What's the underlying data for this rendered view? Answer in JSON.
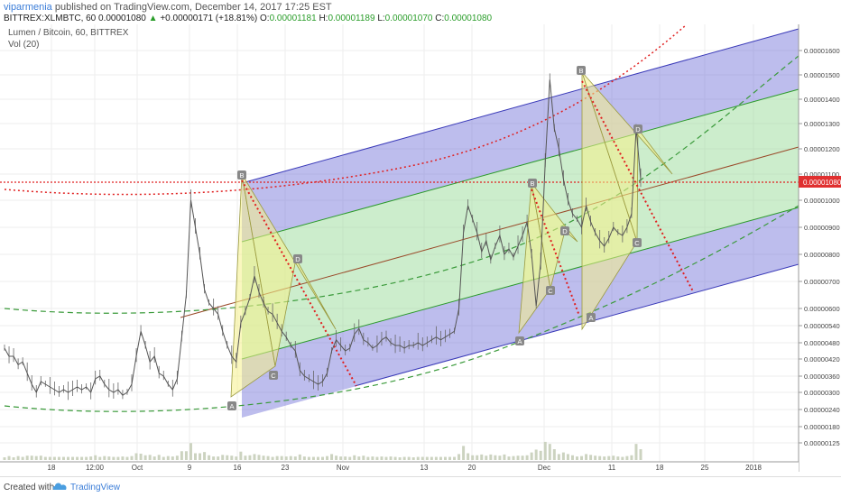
{
  "header": {
    "user": "viparmenia",
    "published": "published on TradingView.com, December 14, 2017 17:25 EST",
    "symbol": "BITTREX:XLMBTC, 60",
    "open_label": "O:",
    "open": "0.00001181",
    "high_label": "H:",
    "high": "0.00001189",
    "low_label": "L:",
    "low": "0.00001070",
    "close_label": "C:",
    "close": "0.00001080",
    "last": "0.00001080",
    "change": "+0.00000171 (+18.81%)",
    "change_arrow": "▲"
  },
  "legend": {
    "title": "Lumen / Bitcoin, 60, BITTREX",
    "volume": "Vol (20)"
  },
  "footer": {
    "created_with": "Created with",
    "brand": "TradingView"
  },
  "colors": {
    "candle": "#666666",
    "blue_fill": "#6c6cd8",
    "green_fill": "#8ed68e",
    "yellow_fill": "#f5f08a",
    "pitch_line": "#3a3ab8",
    "median_line": "#9a4a2a",
    "red_dotted": "#e02020",
    "green_dashed": "#3a9a3a",
    "price_tag_bg": "#e03030",
    "volume": "#ccd3c0"
  },
  "chart_data": {
    "type": "line",
    "title": "Lumen / Bitcoin, 60, BITTREX",
    "xlabel": "",
    "ylabel": "",
    "x_tick_labels": [
      "18",
      "12:00",
      "Oct",
      "9",
      "16",
      "23",
      "Nov",
      "13",
      "20",
      "Dec",
      "11",
      "18",
      "25",
      "2018"
    ],
    "y_tick_labels": [
      "0.00001600",
      "0.00001500",
      "0.00001400",
      "0.00001300",
      "0.00001200",
      "0.00001100",
      "0.00001000",
      "0.00000900",
      "0.00000800",
      "0.00000700",
      "0.00000600",
      "0.00000540",
      "0.00000480",
      "0.00000420",
      "0.00000360",
      "0.00000300",
      "0.00000240",
      "0.00000180",
      "0.00000125"
    ],
    "current_price_label": "0.00001080",
    "grid": true,
    "pattern_labels": [
      "B",
      "D",
      "C",
      "A",
      "B",
      "D",
      "C",
      "A",
      "B",
      "D",
      "C",
      "A"
    ],
    "series": [
      {
        "values": [
          4.6e-06,
          4.3e-06,
          4.3e-06,
          4e-06,
          4.1e-06,
          3.7e-06,
          3.3e-06,
          3e-06,
          3.4e-06,
          3.3e-06,
          3.2e-06,
          3.1e-06,
          3e-06,
          3.1e-06,
          3e-06,
          3.1e-06,
          3.2e-06,
          3.1e-06,
          3.2e-06,
          3e-06,
          3.5e-06,
          3.6e-06,
          3.3e-06,
          3.1e-06,
          3e-06,
          3.1e-06,
          2.9e-06,
          3e-06,
          3.3e-06,
          4.3e-06,
          5.2e-06,
          4.7e-06,
          4.1e-06,
          4.3e-06,
          3.7e-06,
          3.6e-06,
          3.3e-06,
          3.1e-06,
          3.5e-06,
          5e-06,
          6.5e-06,
          1e-05,
          9e-06,
          8e-06,
          6.7e-06,
          6.2e-06,
          6e-06,
          5.8e-06,
          5.2e-06,
          4.7e-06,
          4.3e-06,
          4.1e-06,
          5.5e-06,
          5.9e-06,
          6.4e-06,
          7.2e-06,
          6.6e-06,
          6.2e-06,
          5.9e-06,
          5.8e-06,
          5.5e-06,
          5.2e-06,
          5e-06,
          4.7e-06,
          4.5e-06,
          3.8e-06,
          3.6e-06,
          3.5e-06,
          3.4e-06,
          3.3e-06,
          3.4e-06,
          3.7e-06,
          4.5e-06,
          4.9e-06,
          4.7e-06,
          4.5e-06,
          4.6e-06,
          5.1e-06,
          5.3e-06,
          4.9e-06,
          4.8e-06,
          4.6e-06,
          4.7e-06,
          4.9e-06,
          5e-06,
          4.8e-06,
          4.7e-06,
          4.7e-06,
          4.6e-06,
          4.7e-06,
          4.7e-06,
          4.8e-06,
          4.7e-06,
          4.8e-06,
          4.9e-06,
          5e-06,
          4.9e-06,
          5e-06,
          5.1e-06,
          5.2e-06,
          6e-06,
          8.8e-06,
          9.8e-06,
          9.3e-06,
          8.8e-06,
          8.1e-06,
          8.5e-06,
          7.8e-06,
          8.3e-06,
          8.7e-06,
          8e-06,
          8.2e-06,
          7.9e-06,
          8.3e-06,
          8.7e-06,
          9.2e-06,
          8e-06,
          6.1e-06,
          7.7e-06,
          1.15e-05,
          1.48e-05,
          1.28e-05,
          1.2e-05,
          1.08e-05,
          1e-05,
          9.5e-06,
          9.3e-06,
          9e-06,
          9.8e-06,
          9.2e-06,
          8.8e-06,
          8.5e-06,
          8.3e-06,
          8.6e-06,
          9e-06,
          8.8e-06,
          8.7e-06,
          9e-06,
          9.5e-06,
          1.28e-05,
          1.08e-05
        ]
      }
    ]
  }
}
